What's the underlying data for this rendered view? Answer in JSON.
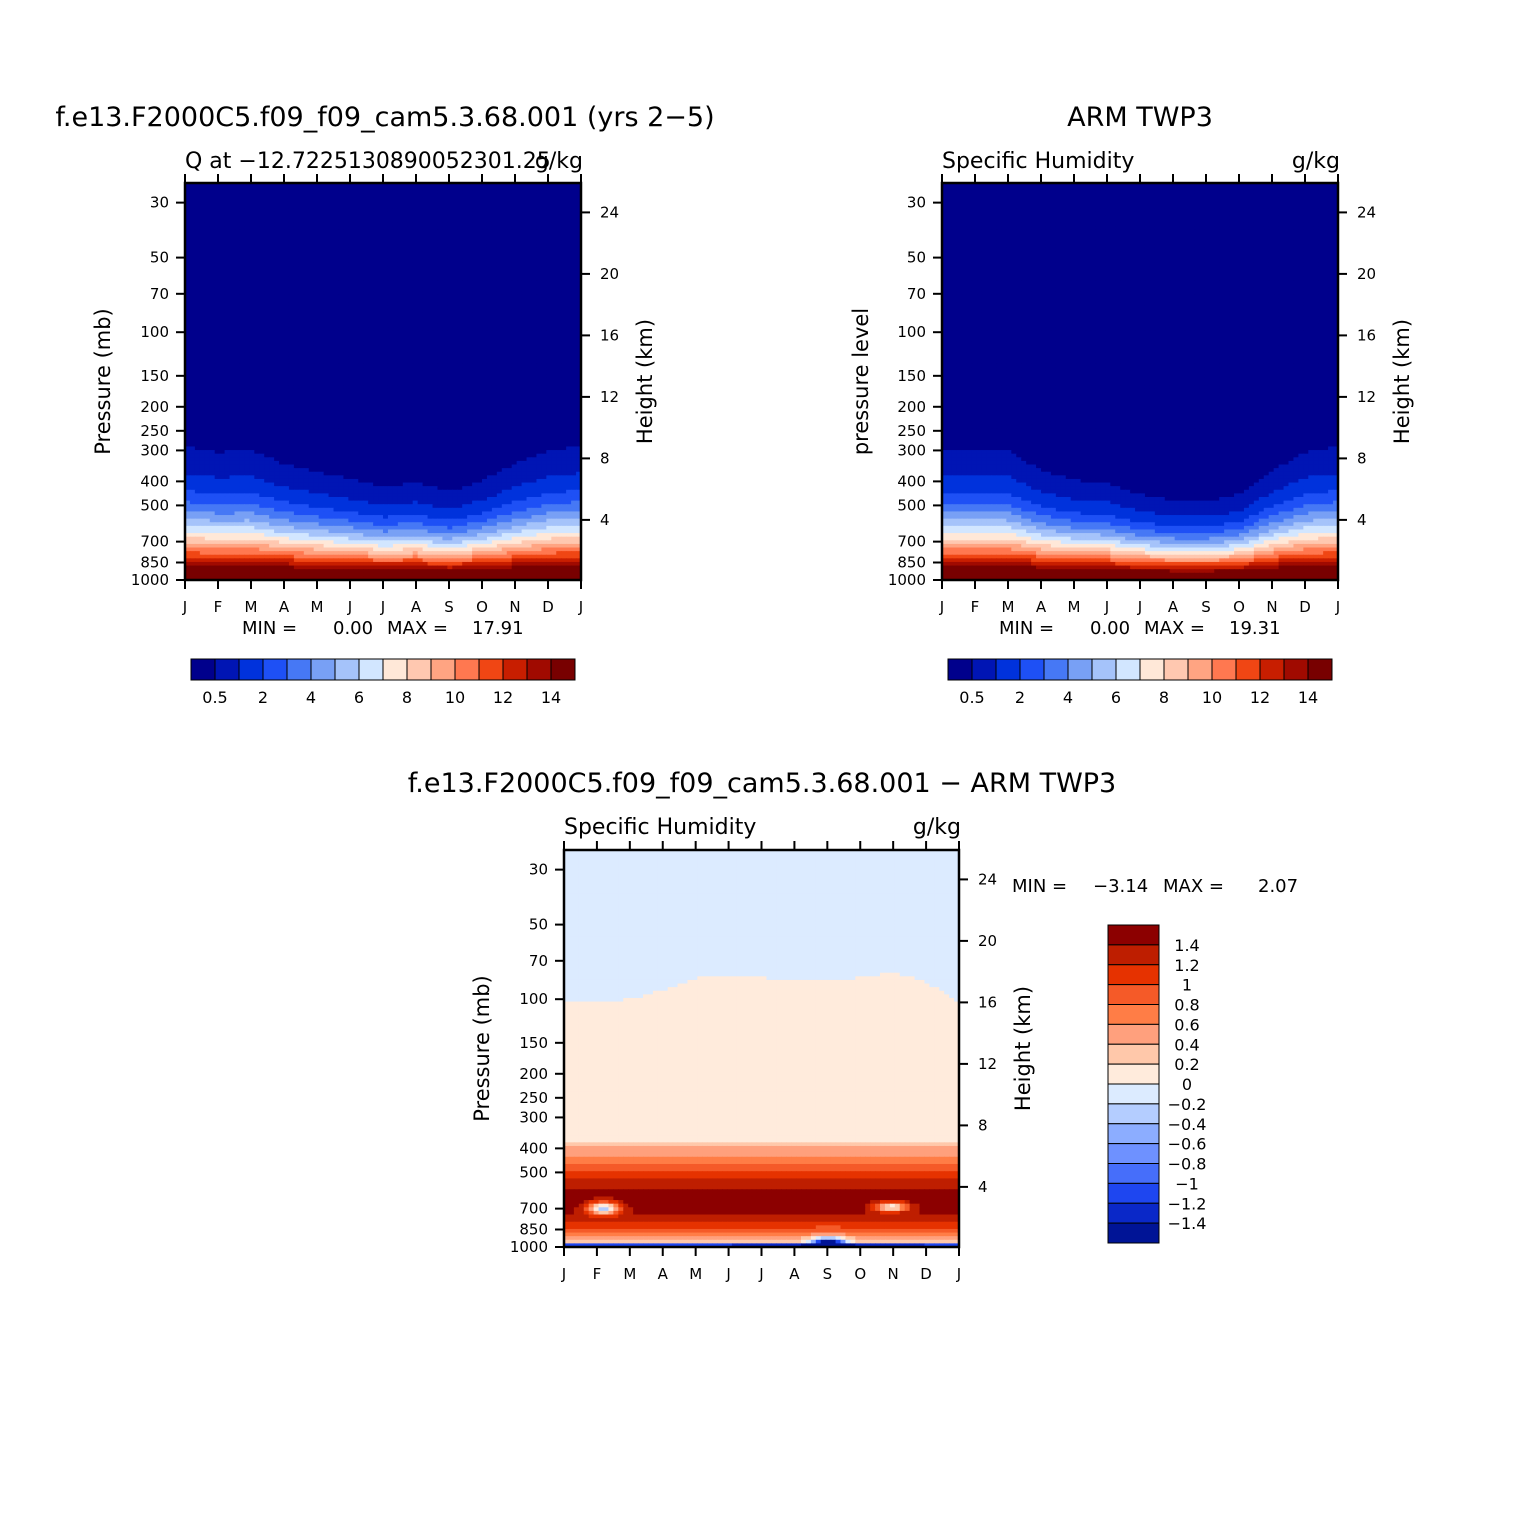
{
  "chart_data": [
    {
      "type": "heatmap",
      "title": "f.e13.F2000C5.f09_f09_cam5.3.68.001 (yrs 2−5)",
      "subtitle_left": "Q at −12.7225130890052301.25",
      "subtitle_right": "g/kg",
      "xlabel": "",
      "ylabel": "Pressure (mb)",
      "ylabel_right": "Height (km)",
      "x_categories": [
        "J",
        "F",
        "M",
        "A",
        "M",
        "J",
        "J",
        "A",
        "S",
        "O",
        "N",
        "D",
        "J"
      ],
      "y_ticks": [
        30,
        50,
        70,
        100,
        150,
        200,
        250,
        300,
        400,
        500,
        700,
        850,
        1000
      ],
      "y_ticks_right": [
        24,
        20,
        16,
        12,
        8,
        4
      ],
      "ylim": [
        1000,
        25
      ],
      "min_label": "MIN =",
      "min_value": "0.00",
      "max_label": "MAX =",
      "max_value": "17.91",
      "levels": [
        0.5,
        1,
        2,
        3,
        4,
        5,
        6,
        7,
        8,
        9,
        10,
        11,
        12,
        13,
        14
      ],
      "legend_labels": [
        "0.5",
        "2",
        "4",
        "6",
        "8",
        "10",
        "12",
        "14"
      ],
      "colors": [
        "#00008c",
        "#0015b4",
        "#0032dc",
        "#1e50f5",
        "#4678f5",
        "#78a0f5",
        "#a5c3fa",
        "#d2e6ff",
        "#ffe8d8",
        "#ffc8b0",
        "#ffa482",
        "#ff7850",
        "#f04614",
        "#c81e00",
        "#a00a00",
        "#780000"
      ],
      "moisture_top_pressure": [
        290,
        305,
        300,
        340,
        365,
        390,
        420,
        405,
        440,
        395,
        340,
        300,
        290
      ]
    },
    {
      "type": "heatmap",
      "title": "ARM TWP3",
      "subtitle_left": "Specific Humidity",
      "subtitle_right": "g/kg",
      "xlabel": "",
      "ylabel": "pressure level",
      "ylabel_right": "Height (km)",
      "x_categories": [
        "J",
        "F",
        "M",
        "A",
        "M",
        "J",
        "J",
        "A",
        "S",
        "O",
        "N",
        "D",
        "J"
      ],
      "y_ticks": [
        30,
        50,
        70,
        100,
        150,
        200,
        250,
        300,
        400,
        500,
        700,
        850,
        1000
      ],
      "y_ticks_right": [
        24,
        20,
        16,
        12,
        8,
        4
      ],
      "ylim": [
        1000,
        25
      ],
      "min_label": "MIN =",
      "min_value": "0.00",
      "max_label": "MAX =",
      "max_value": "19.31",
      "levels": [
        0.5,
        1,
        2,
        3,
        4,
        5,
        6,
        7,
        8,
        9,
        10,
        11,
        12,
        13,
        14
      ],
      "legend_labels": [
        "0.5",
        "2",
        "4",
        "6",
        "8",
        "10",
        "12",
        "14"
      ],
      "colors": [
        "#00008c",
        "#0015b4",
        "#0032dc",
        "#1e50f5",
        "#4678f5",
        "#78a0f5",
        "#a5c3fa",
        "#d2e6ff",
        "#ffe8d8",
        "#ffc8b0",
        "#ffa482",
        "#ff7850",
        "#f04614",
        "#c81e00",
        "#a00a00",
        "#780000"
      ],
      "moisture_top_pressure": [
        300,
        300,
        300,
        360,
        395,
        405,
        450,
        475,
        480,
        450,
        360,
        305,
        290
      ]
    },
    {
      "type": "heatmap",
      "title": "f.e13.F2000C5.f09_f09_cam5.3.68.001 − ARM TWP3",
      "subtitle_left": "Specific Humidity",
      "subtitle_right": "g/kg",
      "xlabel": "",
      "ylabel": "Pressure (mb)",
      "ylabel_right": "Height (km)",
      "x_categories": [
        "J",
        "F",
        "M",
        "A",
        "M",
        "J",
        "J",
        "A",
        "S",
        "O",
        "N",
        "D",
        "J"
      ],
      "y_ticks": [
        30,
        50,
        70,
        100,
        150,
        200,
        250,
        300,
        400,
        500,
        700,
        850,
        1000
      ],
      "y_ticks_right": [
        24,
        20,
        16,
        12,
        8,
        4
      ],
      "ylim": [
        1000,
        25
      ],
      "min_label": "MIN =",
      "min_value": "−3.14",
      "max_label": "MAX =",
      "max_value": "2.07",
      "legend_labels": [
        "1.4",
        "1.2",
        "1",
        "0.8",
        "0.6",
        "0.4",
        "0.2",
        "0",
        "−0.2",
        "−0.4",
        "−0.6",
        "−0.8",
        "−1",
        "−1.2",
        "−1.4"
      ],
      "colors": [
        "#8c0000",
        "#be1e00",
        "#e63200",
        "#f55a28",
        "#ff7d46",
        "#ffa07d",
        "#ffc8aa",
        "#ffebdc",
        "#dcebff",
        "#b4cdff",
        "#8cadff",
        "#6e91ff",
        "#466efa",
        "#1e46f0",
        "#0a28c8",
        "#001496"
      ],
      "zero_line_pressure": [
        102,
        102,
        100,
        92,
        82,
        82,
        82,
        84,
        84,
        82,
        78,
        85,
        102
      ]
    }
  ]
}
